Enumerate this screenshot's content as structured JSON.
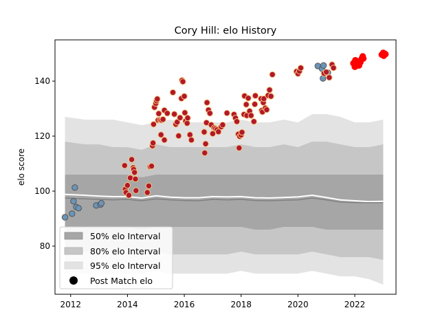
{
  "chart_data": {
    "type": "scatter",
    "title": "Cory Hill: elo History",
    "xlabel": "",
    "ylabel": "elo score",
    "xlim": [
      2011.45,
      2023.45
    ],
    "ylim": [
      62.5,
      155
    ],
    "xticks": [
      2012,
      2014,
      2016,
      2018,
      2020,
      2022
    ],
    "yticks": [
      80,
      100,
      120,
      140
    ],
    "grid": false,
    "legend_position": "lower-left",
    "legend": [
      {
        "label": "50% elo Interval",
        "color": "#a6a6a6"
      },
      {
        "label": "80% elo Interval",
        "color": "#c6c6c6"
      },
      {
        "label": "95% elo Interval",
        "color": "#e3e3e3"
      },
      {
        "label": "Post Match elo",
        "color": "#000000"
      }
    ],
    "bands": {
      "x": [
        2011.8,
        2012.5,
        2013.0,
        2013.5,
        2014.0,
        2014.5,
        2015.0,
        2015.5,
        2016.0,
        2016.5,
        2017.0,
        2017.5,
        2018.0,
        2018.5,
        2019.0,
        2019.5,
        2020.0,
        2020.5,
        2021.0,
        2021.5,
        2022.0,
        2022.5,
        2023.0
      ],
      "p95_upper": [
        127,
        126,
        126,
        126,
        125,
        124,
        125,
        126,
        125,
        125,
        125,
        125,
        126,
        125,
        125,
        126,
        125,
        128,
        128,
        127,
        125,
        125,
        126
      ],
      "p95_lower": [
        71,
        70,
        70,
        70,
        70,
        70,
        71,
        70,
        70,
        70,
        70,
        70,
        71,
        70,
        70,
        70,
        70,
        71,
        70,
        69,
        69,
        68,
        66
      ],
      "p80_upper": [
        118,
        117,
        117,
        116,
        116,
        115,
        117,
        116,
        116,
        116,
        116,
        116,
        117,
        116,
        116,
        117,
        116,
        118,
        118,
        117,
        116,
        116,
        117
      ],
      "p80_lower": [
        78,
        78,
        78,
        78,
        77,
        77,
        78,
        77,
        77,
        77,
        77,
        77,
        78,
        77,
        77,
        77,
        77,
        78,
        77,
        76,
        76,
        76,
        75
      ],
      "p50_upper": [
        106,
        106,
        106,
        106,
        106,
        105,
        106,
        106,
        106,
        106,
        106,
        106,
        106,
        106,
        106,
        106,
        106,
        106,
        106,
        106,
        106,
        106,
        106
      ],
      "p50_lower": [
        87,
        87,
        87,
        87,
        87,
        86,
        87,
        87,
        87,
        87,
        87,
        87,
        87,
        86,
        86,
        87,
        87,
        87,
        86,
        86,
        86,
        86,
        86
      ]
    },
    "median_line": {
      "x": [
        2011.8,
        2012.5,
        2013.0,
        2013.5,
        2014.0,
        2014.5,
        2015.0,
        2015.5,
        2016.0,
        2016.5,
        2017.0,
        2017.5,
        2018.0,
        2018.5,
        2019.0,
        2019.5,
        2020.0,
        2020.5,
        2021.0,
        2021.5,
        2022.0,
        2022.5,
        2023.0
      ],
      "y": [
        97.5,
        97.2,
        97.0,
        96.8,
        97.0,
        96.5,
        97.2,
        96.8,
        96.6,
        96.5,
        97.0,
        96.8,
        97.0,
        96.6,
        96.5,
        96.7,
        96.8,
        97.5,
        96.8,
        96.0,
        95.8,
        95.8,
        95.8
      ]
    },
    "reference_line": {
      "x": [
        2011.8,
        2012.5,
        2013.0,
        2013.5,
        2014.0,
        2014.5,
        2015.0,
        2015.5,
        2016.0,
        2016.5,
        2017.0,
        2017.5,
        2018.0,
        2018.5,
        2019.0,
        2019.5,
        2020.0,
        2020.5,
        2021.0,
        2021.5,
        2022.0,
        2022.5,
        2023.0
      ],
      "y": [
        98.8,
        98.5,
        98.2,
        98.0,
        98.0,
        97.5,
        98.3,
        97.8,
        97.6,
        97.6,
        98.0,
        97.9,
        98.0,
        97.6,
        97.5,
        97.7,
        97.9,
        98.5,
        97.7,
        96.8,
        96.5,
        96.2,
        96.3
      ]
    },
    "series": [
      {
        "name": "steelblue",
        "fill": "#6b94b8",
        "edge": "#555555",
        "points": [
          [
            2011.8,
            90.5
          ],
          [
            2012.05,
            91.8
          ],
          [
            2012.1,
            96.3
          ],
          [
            2012.15,
            101.3
          ],
          [
            2012.2,
            94.2
          ],
          [
            2012.28,
            93.8
          ],
          [
            2012.9,
            94.8
          ],
          [
            2013.05,
            95.1
          ],
          [
            2013.08,
            95.6
          ],
          [
            2020.7,
            145.5
          ],
          [
            2020.85,
            144.5
          ],
          [
            2020.9,
            145.7
          ],
          [
            2020.88,
            141.0
          ],
          [
            2021.05,
            143.1
          ]
        ]
      },
      {
        "name": "orange",
        "fill": "#b2182b",
        "edge": "#f5c77e",
        "points": [
          [
            2013.9,
            109.3
          ],
          [
            2013.92,
            100.7
          ],
          [
            2013.95,
            99.5
          ],
          [
            2014.0,
            102.1
          ],
          [
            2014.05,
            98.5
          ],
          [
            2014.1,
            104.8
          ],
          [
            2014.15,
            111.5
          ],
          [
            2014.2,
            108.5
          ],
          [
            2014.22,
            107.9
          ],
          [
            2014.25,
            106.8
          ],
          [
            2014.28,
            104.4
          ],
          [
            2014.3,
            100.2
          ],
          [
            2014.7,
            99.5
          ],
          [
            2014.75,
            101.9
          ],
          [
            2014.8,
            108.9
          ],
          [
            2014.85,
            109.1
          ],
          [
            2014.88,
            116.5
          ],
          [
            2014.9,
            117.5
          ],
          [
            2014.92,
            124.3
          ],
          [
            2014.95,
            130.5
          ],
          [
            2015.0,
            131.9
          ],
          [
            2015.02,
            132.8
          ],
          [
            2015.05,
            133.5
          ],
          [
            2015.08,
            125.8
          ],
          [
            2015.1,
            128.2
          ],
          [
            2015.15,
            125.9
          ],
          [
            2015.18,
            120.5
          ],
          [
            2015.2,
            125.8
          ],
          [
            2015.25,
            126.1
          ],
          [
            2015.3,
            118.6
          ],
          [
            2015.3,
            129.4
          ],
          [
            2015.4,
            128.3
          ],
          [
            2015.6,
            135.9
          ],
          [
            2015.65,
            128.0
          ],
          [
            2015.7,
            124.3
          ],
          [
            2015.75,
            125.1
          ],
          [
            2015.8,
            120.1
          ],
          [
            2015.85,
            126.7
          ],
          [
            2015.9,
            133.7
          ],
          [
            2015.92,
            140.3
          ],
          [
            2015.95,
            139.8
          ],
          [
            2016.0,
            134.5
          ],
          [
            2016.02,
            128.5
          ],
          [
            2016.05,
            125.5
          ],
          [
            2016.1,
            124.7
          ],
          [
            2016.12,
            126.6
          ],
          [
            2016.2,
            120.5
          ],
          [
            2016.25,
            118.6
          ],
          [
            2016.7,
            121.5
          ],
          [
            2016.72,
            113.9
          ],
          [
            2016.75,
            117.2
          ],
          [
            2016.78,
            124.9
          ],
          [
            2016.8,
            132.2
          ],
          [
            2016.85,
            129.5
          ],
          [
            2016.9,
            128.3
          ],
          [
            2016.95,
            124.1
          ],
          [
            2017.0,
            120.9
          ],
          [
            2017.05,
            123.0
          ],
          [
            2017.1,
            122.7
          ],
          [
            2017.15,
            122.3
          ],
          [
            2017.2,
            121.6
          ],
          [
            2017.3,
            123.4
          ],
          [
            2017.35,
            124.1
          ],
          [
            2017.5,
            128.4
          ],
          [
            2017.75,
            127.9
          ],
          [
            2017.8,
            126.6
          ],
          [
            2017.85,
            125.3
          ],
          [
            2017.9,
            120.7
          ],
          [
            2017.93,
            115.7
          ],
          [
            2017.95,
            119.9
          ],
          [
            2018.0,
            120.4
          ],
          [
            2018.03,
            121.4
          ],
          [
            2018.1,
            127.9
          ],
          [
            2018.12,
            134.6
          ],
          [
            2018.18,
            131.5
          ],
          [
            2018.2,
            127.5
          ],
          [
            2018.25,
            133.8
          ],
          [
            2018.3,
            129.1
          ],
          [
            2018.35,
            127.5
          ],
          [
            2018.45,
            125.3
          ],
          [
            2018.48,
            131.6
          ],
          [
            2018.5,
            134.7
          ],
          [
            2018.7,
            133.6
          ],
          [
            2018.72,
            129.3
          ],
          [
            2018.75,
            128.8
          ],
          [
            2018.78,
            132.2
          ],
          [
            2018.8,
            133.6
          ],
          [
            2018.85,
            130.2
          ],
          [
            2018.9,
            129.6
          ],
          [
            2018.95,
            134.8
          ],
          [
            2019.0,
            136.8
          ],
          [
            2019.05,
            134.5
          ],
          [
            2019.1,
            142.4
          ],
          [
            2019.95,
            143.5
          ],
          [
            2020.0,
            142.7
          ],
          [
            2020.05,
            143.6
          ],
          [
            2020.1,
            144.8
          ],
          [
            2020.92,
            142.8
          ],
          [
            2021.0,
            143.3
          ],
          [
            2021.1,
            141.3
          ],
          [
            2021.2,
            146.0
          ],
          [
            2021.25,
            144.8
          ]
        ]
      },
      {
        "name": "red",
        "fill": "#ff0000",
        "edge": "#ff0000",
        "points": [
          [
            2021.95,
            146.5
          ],
          [
            2022.0,
            145.2
          ],
          [
            2022.02,
            147.6
          ],
          [
            2022.05,
            146.0
          ],
          [
            2022.08,
            145.6
          ],
          [
            2022.1,
            147.2
          ],
          [
            2022.12,
            146.5
          ],
          [
            2022.15,
            145.7
          ],
          [
            2022.2,
            146.9
          ],
          [
            2022.25,
            148.3
          ],
          [
            2022.28,
            149.0
          ],
          [
            2022.3,
            148.2
          ],
          [
            2022.95,
            149.6
          ],
          [
            2023.0,
            150.3
          ],
          [
            2023.02,
            149.2
          ],
          [
            2023.05,
            150.0
          ],
          [
            2023.08,
            149.8
          ]
        ]
      }
    ]
  }
}
